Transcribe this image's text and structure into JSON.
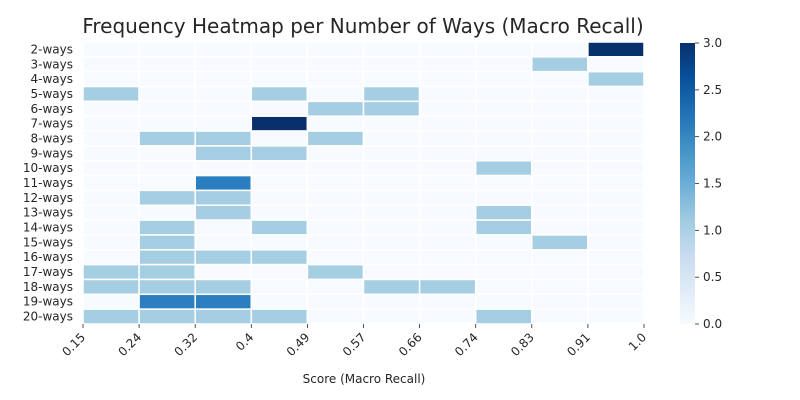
{
  "chart_data": {
    "type": "heatmap",
    "title": "Frequency Heatmap per Number of Ways (Macro Recall)",
    "xlabel": "Score (Macro Recall)",
    "ylabel": "",
    "x_ticks": [
      "0.15",
      "0.24",
      "0.32",
      "0.4",
      "0.49",
      "0.57",
      "0.66",
      "0.74",
      "0.83",
      "0.91",
      "1.0"
    ],
    "rows": [
      "2-ways",
      "3-ways",
      "4-ways",
      "5-ways",
      "6-ways",
      "7-ways",
      "8-ways",
      "9-ways",
      "10-ways",
      "11-ways",
      "12-ways",
      "13-ways",
      "14-ways",
      "15-ways",
      "16-ways",
      "17-ways",
      "18-ways",
      "19-ways",
      "20-ways"
    ],
    "values": [
      [
        0,
        0,
        0,
        0,
        0,
        0,
        0,
        0,
        0,
        3
      ],
      [
        0,
        0,
        0,
        0,
        0,
        0,
        0,
        0,
        1,
        0
      ],
      [
        0,
        0,
        0,
        0,
        0,
        0,
        0,
        0,
        0,
        1
      ],
      [
        1,
        0,
        0,
        1,
        0,
        1,
        0,
        0,
        0,
        0
      ],
      [
        0,
        0,
        0,
        0,
        1,
        1,
        0,
        0,
        0,
        0
      ],
      [
        0,
        0,
        0,
        3,
        0,
        0,
        0,
        0,
        0,
        0
      ],
      [
        0,
        1,
        1,
        0,
        1,
        0,
        0,
        0,
        0,
        0
      ],
      [
        0,
        0,
        1,
        1,
        0,
        0,
        0,
        0,
        0,
        0
      ],
      [
        0,
        0,
        0,
        0,
        0,
        0,
        0,
        1,
        0,
        0
      ],
      [
        0,
        0,
        2,
        0,
        0,
        0,
        0,
        0,
        0,
        0
      ],
      [
        0,
        1,
        1,
        0,
        0,
        0,
        0,
        0,
        0,
        0
      ],
      [
        0,
        0,
        1,
        0,
        0,
        0,
        0,
        1,
        0,
        0
      ],
      [
        0,
        1,
        0,
        1,
        0,
        0,
        0,
        1,
        0,
        0
      ],
      [
        0,
        1,
        0,
        0,
        0,
        0,
        0,
        0,
        1,
        0
      ],
      [
        0,
        1,
        1,
        1,
        0,
        0,
        0,
        0,
        0,
        0
      ],
      [
        1,
        1,
        0,
        0,
        1,
        0,
        0,
        0,
        0,
        0
      ],
      [
        1,
        1,
        1,
        0,
        0,
        1,
        1,
        0,
        0,
        0
      ],
      [
        0,
        2,
        2,
        0,
        0,
        0,
        0,
        0,
        0,
        0
      ],
      [
        1,
        1,
        1,
        1,
        0,
        0,
        0,
        1,
        0,
        0
      ]
    ],
    "colorbar": {
      "min": 0.0,
      "max": 3.0,
      "ticks": [
        "0.0",
        "0.5",
        "1.0",
        "1.5",
        "2.0",
        "2.5",
        "3.0"
      ],
      "colormap": "Blues"
    },
    "grid": false,
    "colors": {
      "zero": "#f7fbff",
      "one": "#a6cee3",
      "two": "#2b7fc0",
      "three": "#08306b",
      "cell_border": "#ffffff"
    }
  }
}
